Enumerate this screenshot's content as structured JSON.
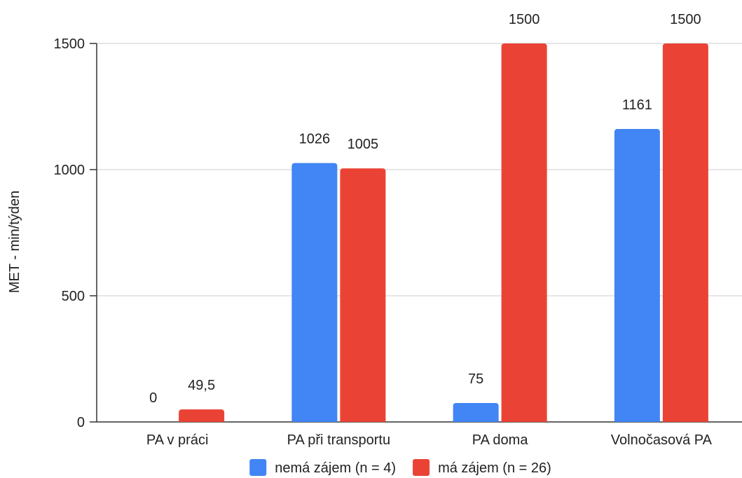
{
  "chart_data": {
    "type": "bar",
    "categories": [
      "PA v práci",
      "PA při transportu",
      "PA doma",
      "Volnočasová PA"
    ],
    "series": [
      {
        "name": "nemá zájem (n = 4)",
        "values": [
          0,
          1026,
          75,
          1161
        ],
        "labels": [
          "0",
          "1026",
          "75",
          "1161"
        ],
        "color": "#4285f4"
      },
      {
        "name": "má zájem (n = 26)",
        "values": [
          49.5,
          1005,
          1500,
          1500
        ],
        "labels": [
          "49,5",
          "1005",
          "1500",
          "1500"
        ],
        "color": "#ea4335"
      }
    ],
    "title": "",
    "xlabel": "",
    "ylabel": "MET - min/týden",
    "ylim": [
      0,
      1500
    ],
    "yticks": [
      0,
      500,
      1000,
      1500
    ],
    "ytick_labels": [
      "0",
      "500",
      "1000",
      "1500"
    ],
    "grid": true,
    "legend_position": "bottom"
  }
}
